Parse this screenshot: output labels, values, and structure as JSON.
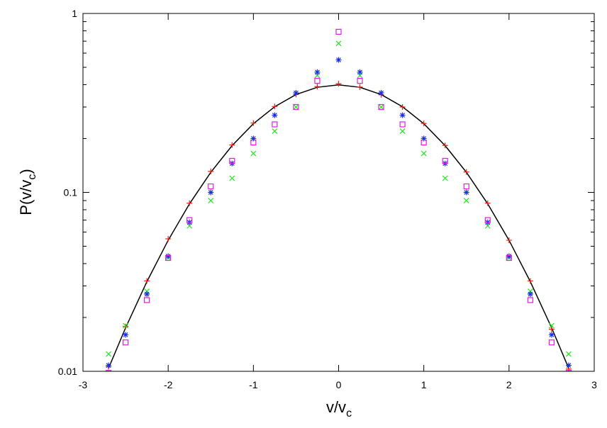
{
  "chart_data": {
    "type": "line",
    "xlabel": [
      "v/v",
      "c"
    ],
    "ylabel": [
      "P(v/v",
      "c",
      ")"
    ],
    "x": [
      -2.7,
      -2.5,
      -2.25,
      -2,
      -1.75,
      -1.5,
      -1.25,
      -1,
      -0.75,
      -0.5,
      -0.25,
      0,
      0.25,
      0.5,
      0.75,
      1,
      1.25,
      1.5,
      1.75,
      2,
      2.25,
      2.5,
      2.7
    ],
    "series": [
      {
        "color": "#000000",
        "style": "line",
        "values": [
          0.0104,
          0.0175,
          0.0317,
          0.054,
          0.0863,
          0.1295,
          0.1826,
          0.242,
          0.3011,
          0.3521,
          0.3867,
          0.3989,
          0.3867,
          0.3521,
          0.3011,
          0.242,
          0.1826,
          0.1295,
          0.0863,
          0.054,
          0.0317,
          0.0175,
          0.0104
        ]
      },
      {
        "color": "#e8210c",
        "style": "plus",
        "values": [
          0.0106,
          0.0178,
          0.032,
          0.055,
          0.087,
          0.131,
          0.184,
          0.244,
          0.302,
          0.353,
          0.39,
          0.405,
          0.388,
          0.351,
          0.3,
          0.243,
          0.183,
          0.13,
          0.087,
          0.054,
          0.032,
          0.0172,
          0.0103
        ]
      },
      {
        "color": "#22e622",
        "style": "cross",
        "values": [
          0.0125,
          0.018,
          0.028,
          0.043,
          0.065,
          0.09,
          0.12,
          0.165,
          0.22,
          0.3,
          0.45,
          0.68,
          0.45,
          0.3,
          0.22,
          0.165,
          0.12,
          0.09,
          0.065,
          0.043,
          0.028,
          0.018,
          0.0125
        ]
      },
      {
        "color": "#1a2ee6",
        "style": "star",
        "values": [
          0.0108,
          0.016,
          0.027,
          0.044,
          0.068,
          0.1,
          0.145,
          0.2,
          0.27,
          0.36,
          0.47,
          0.55,
          0.47,
          0.36,
          0.27,
          0.2,
          0.145,
          0.1,
          0.068,
          0.044,
          0.027,
          0.016,
          0.0108
        ]
      },
      {
        "color": "#e61ee6",
        "style": "square",
        "values": [
          0.0098,
          0.0145,
          0.025,
          0.043,
          0.07,
          0.108,
          0.15,
          0.19,
          0.24,
          0.3,
          0.42,
          0.79,
          0.42,
          0.3,
          0.24,
          0.19,
          0.15,
          0.108,
          0.07,
          0.043,
          0.025,
          0.0145,
          0.0098
        ]
      }
    ],
    "xlim": [
      -3,
      3
    ],
    "xticks": [
      -3,
      -2,
      -1,
      0,
      1,
      2,
      3
    ],
    "ylim": [
      0.01,
      1
    ],
    "yticks": [
      0.01,
      0.1,
      1
    ],
    "log_y": true,
    "yminorticks": [
      0.02,
      0.03,
      0.04,
      0.05,
      0.06,
      0.07,
      0.08,
      0.09,
      0.2,
      0.3,
      0.4,
      0.5,
      0.6,
      0.7,
      0.8,
      0.9
    ]
  }
}
